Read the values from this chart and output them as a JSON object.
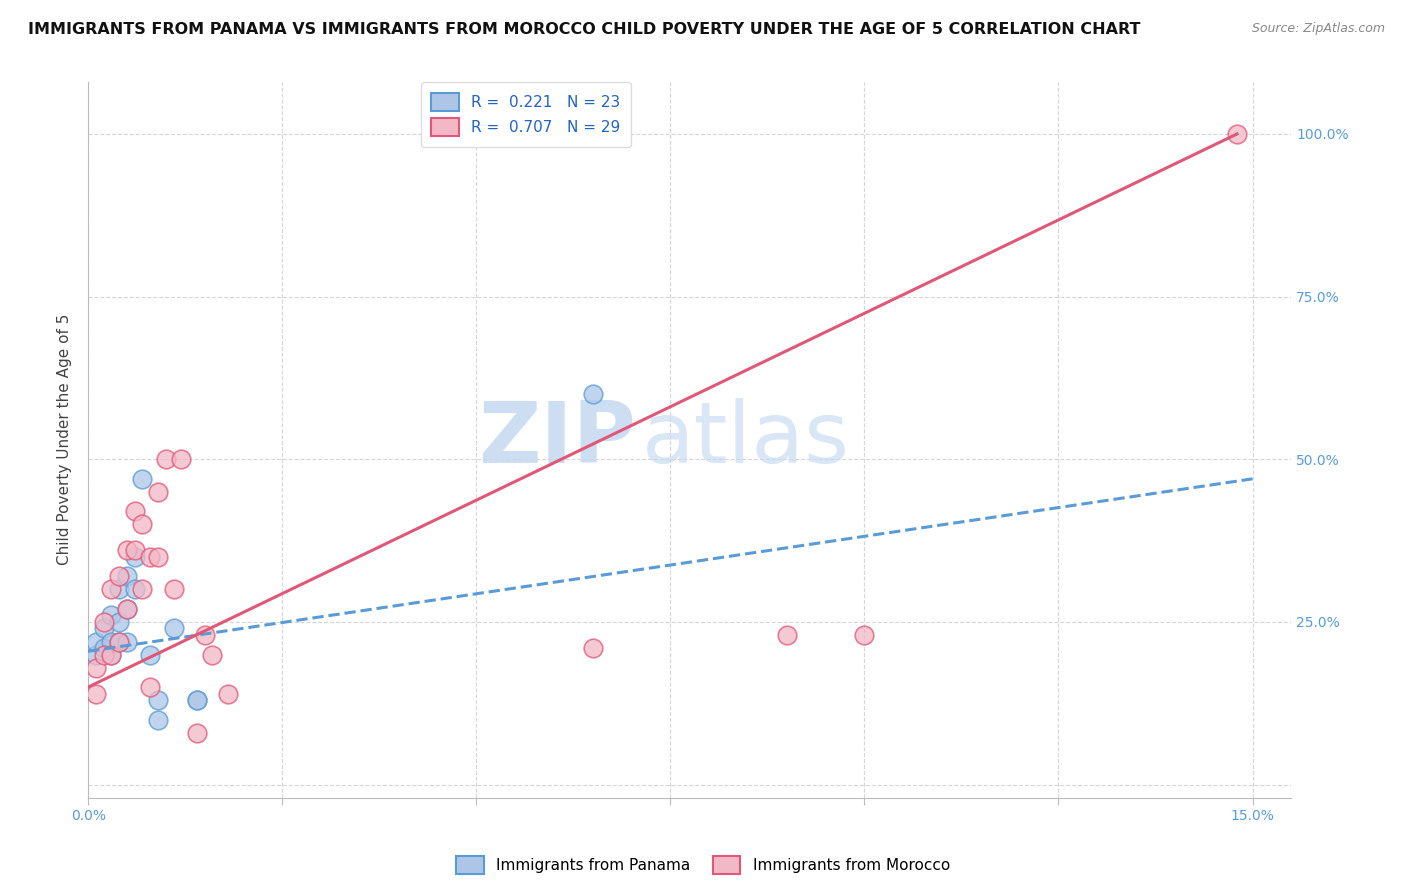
{
  "title": "IMMIGRANTS FROM PANAMA VS IMMIGRANTS FROM MOROCCO CHILD POVERTY UNDER THE AGE OF 5 CORRELATION CHART",
  "source": "Source: ZipAtlas.com",
  "ylabel": "Child Poverty Under the Age of 5",
  "xlim": [
    0.0,
    0.155
  ],
  "ylim": [
    -0.02,
    1.08
  ],
  "xticks": [
    0.0,
    0.025,
    0.05,
    0.075,
    0.1,
    0.125,
    0.15
  ],
  "xtick_labels": [
    "0.0%",
    "",
    "",
    "",
    "",
    "",
    "15.0%"
  ],
  "ytick_labels": [
    "",
    "25.0%",
    "50.0%",
    "75.0%",
    "100.0%"
  ],
  "yticks": [
    0.0,
    0.25,
    0.5,
    0.75,
    1.0
  ],
  "panama_color": "#adc6e8",
  "panama_edge_color": "#5b9bd5",
  "morocco_color": "#f2b8c6",
  "morocco_edge_color": "#e05878",
  "panama_R": 0.221,
  "panama_N": 23,
  "morocco_R": 0.707,
  "morocco_N": 29,
  "panama_scatter_x": [
    0.001,
    0.001,
    0.002,
    0.002,
    0.003,
    0.003,
    0.003,
    0.004,
    0.004,
    0.004,
    0.005,
    0.005,
    0.005,
    0.006,
    0.006,
    0.007,
    0.008,
    0.009,
    0.009,
    0.011,
    0.014,
    0.014,
    0.065
  ],
  "panama_scatter_y": [
    0.2,
    0.22,
    0.21,
    0.24,
    0.2,
    0.22,
    0.26,
    0.22,
    0.25,
    0.3,
    0.22,
    0.27,
    0.32,
    0.3,
    0.35,
    0.47,
    0.2,
    0.1,
    0.13,
    0.24,
    0.13,
    0.13,
    0.6
  ],
  "morocco_scatter_x": [
    0.001,
    0.001,
    0.002,
    0.002,
    0.003,
    0.003,
    0.004,
    0.004,
    0.005,
    0.005,
    0.006,
    0.006,
    0.007,
    0.007,
    0.008,
    0.008,
    0.009,
    0.009,
    0.01,
    0.011,
    0.012,
    0.014,
    0.015,
    0.016,
    0.018,
    0.065,
    0.09,
    0.1,
    0.148
  ],
  "morocco_scatter_y": [
    0.18,
    0.14,
    0.2,
    0.25,
    0.2,
    0.3,
    0.22,
    0.32,
    0.27,
    0.36,
    0.36,
    0.42,
    0.3,
    0.4,
    0.35,
    0.15,
    0.45,
    0.35,
    0.5,
    0.3,
    0.5,
    0.08,
    0.23,
    0.2,
    0.14,
    0.21,
    0.23,
    0.23,
    1.0
  ],
  "panama_line_x": [
    0.0,
    0.15
  ],
  "panama_line_y": [
    0.205,
    0.47
  ],
  "morocco_line_x": [
    0.0,
    0.148
  ],
  "morocco_line_y": [
    0.15,
    1.0
  ],
  "watermark_zip": "ZIP",
  "watermark_atlas": "atlas",
  "background_color": "#ffffff",
  "grid_color": "#cccccc",
  "title_fontsize": 11.5,
  "label_fontsize": 11,
  "tick_fontsize": 10,
  "legend_fontsize": 11,
  "right_ytick_color": "#5b9bd5",
  "legend_r_color": "#2563c0",
  "legend_n_color": "#2563c0"
}
